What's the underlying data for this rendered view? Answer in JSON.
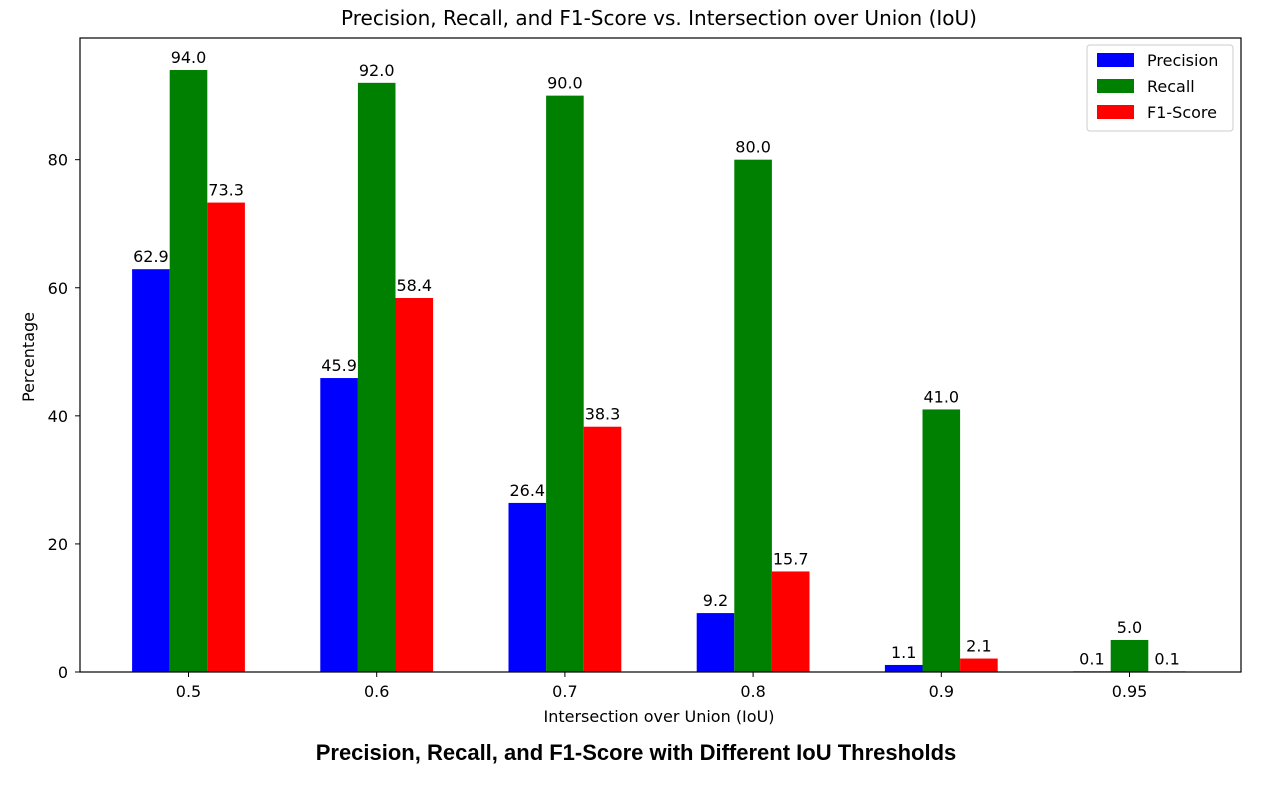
{
  "chart_data": {
    "type": "bar",
    "title": "Precision, Recall, and F1-Score vs. Intersection over Union (IoU)",
    "xlabel": "Intersection over Union (IoU)",
    "ylabel": "Percentage",
    "categories": [
      "0.5",
      "0.6",
      "0.7",
      "0.8",
      "0.9",
      "0.95"
    ],
    "series": [
      {
        "name": "Precision",
        "color": "#0000ff",
        "values": [
          62.9,
          45.9,
          26.4,
          9.2,
          1.1,
          0.1
        ]
      },
      {
        "name": "Recall",
        "color": "#008000",
        "values": [
          94.0,
          92.0,
          90.0,
          80.0,
          41.0,
          5.0
        ]
      },
      {
        "name": "F1-Score",
        "color": "#ff0000",
        "values": [
          73.3,
          58.4,
          38.3,
          15.7,
          2.1,
          0.1
        ]
      }
    ],
    "ylim": [
      0,
      99
    ],
    "yticks": [
      0,
      20,
      40,
      60,
      80
    ],
    "grid": false,
    "legend": "top-right",
    "data_labels": true
  },
  "caption": "Precision, Recall, and F1-Score with  Different IoU Thresholds"
}
